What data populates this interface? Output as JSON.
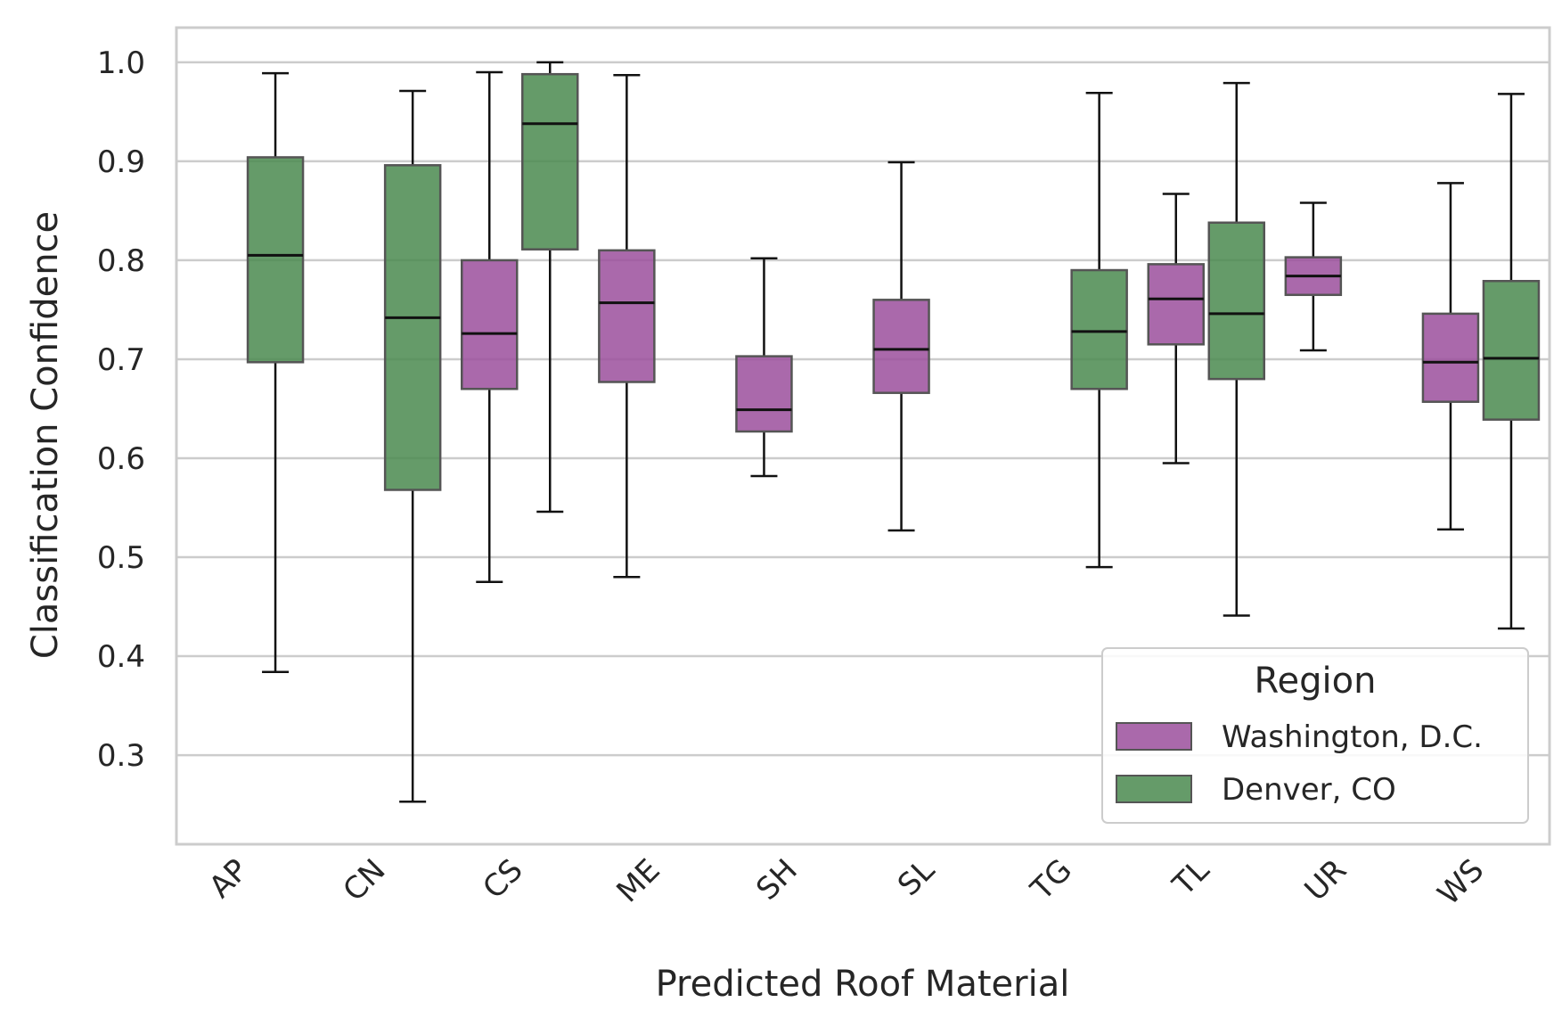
{
  "colors": {
    "washington": "#9b4f9c",
    "denver": "#4a8a4f",
    "grid": "#cccccc",
    "frame": "#cccccc",
    "whisker": "#111111"
  },
  "chart_data": {
    "type": "box",
    "title": "",
    "xlabel": "Predicted Roof Material",
    "ylabel": "Classification Confidence",
    "ylim": [
      0.21,
      1.035
    ],
    "yticks": [
      "0.3",
      "0.4",
      "0.5",
      "0.6",
      "0.7",
      "0.8",
      "0.9",
      "1.0"
    ],
    "grid": "horizontal",
    "legend_position": "bottom-right",
    "legend_title": "Region",
    "categories": [
      "AP",
      "CN",
      "CS",
      "ME",
      "SH",
      "SL",
      "TG",
      "TL",
      "UR",
      "WS"
    ],
    "series": [
      {
        "name": "Washington, D.C.",
        "color_key": "washington",
        "boxes": [
          null,
          null,
          {
            "whislo": 0.475,
            "q1": 0.67,
            "med": 0.726,
            "q3": 0.8,
            "whishi": 0.99
          },
          {
            "whislo": 0.48,
            "q1": 0.677,
            "med": 0.757,
            "q3": 0.81,
            "whishi": 0.987
          },
          {
            "whislo": 0.582,
            "q1": 0.627,
            "med": 0.649,
            "q3": 0.703,
            "whishi": 0.802
          },
          {
            "whislo": 0.527,
            "q1": 0.666,
            "med": 0.71,
            "q3": 0.76,
            "whishi": 0.899
          },
          null,
          {
            "whislo": 0.595,
            "q1": 0.715,
            "med": 0.761,
            "q3": 0.796,
            "whishi": 0.867
          },
          {
            "whislo": 0.709,
            "q1": 0.765,
            "med": 0.784,
            "q3": 0.803,
            "whishi": 0.858
          },
          {
            "whislo": 0.528,
            "q1": 0.657,
            "med": 0.697,
            "q3": 0.746,
            "whishi": 0.878
          }
        ]
      },
      {
        "name": "Denver, CO",
        "color_key": "denver",
        "boxes": [
          {
            "whislo": 0.384,
            "q1": 0.697,
            "med": 0.805,
            "q3": 0.904,
            "whishi": 0.989
          },
          {
            "whislo": 0.253,
            "q1": 0.568,
            "med": 0.742,
            "q3": 0.896,
            "whishi": 0.971
          },
          {
            "whislo": 0.546,
            "q1": 0.811,
            "med": 0.938,
            "q3": 0.988,
            "whishi": 1.0
          },
          null,
          null,
          null,
          {
            "whislo": 0.49,
            "q1": 0.67,
            "med": 0.728,
            "q3": 0.79,
            "whishi": 0.969
          },
          {
            "whislo": 0.441,
            "q1": 0.68,
            "med": 0.746,
            "q3": 0.838,
            "whishi": 0.979
          },
          null,
          {
            "whislo": 0.428,
            "q1": 0.639,
            "med": 0.701,
            "q3": 0.779,
            "whishi": 0.968
          }
        ]
      }
    ]
  }
}
